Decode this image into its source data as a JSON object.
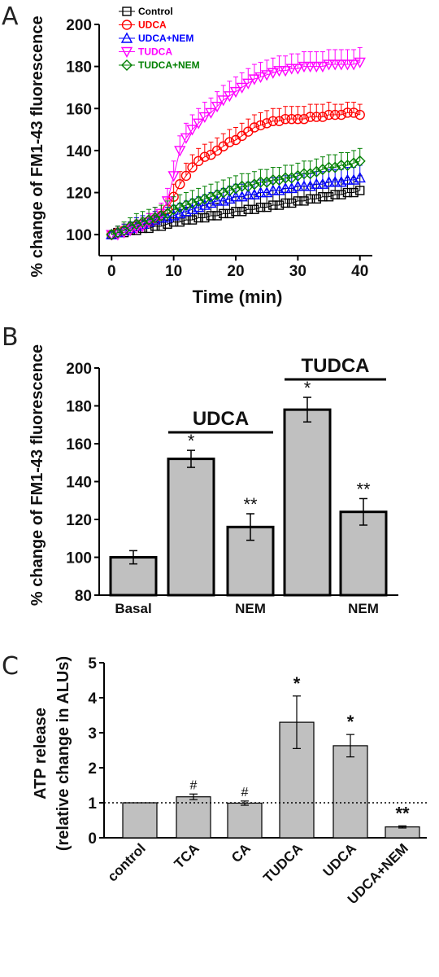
{
  "panels": {
    "a": "A",
    "b": "B",
    "c": "C"
  },
  "chart_data": [
    {
      "type": "line",
      "panel": "A",
      "xlabel": "Time (min)",
      "ylabel": "% change of FM1-43 fluorescence",
      "xlim": [
        -2,
        42
      ],
      "ylim": [
        90,
        200
      ],
      "xticks": [
        0,
        10,
        20,
        30,
        40
      ],
      "yticks": [
        100,
        120,
        140,
        160,
        180,
        200
      ],
      "legend_position": "top",
      "x": [
        0,
        1,
        2,
        3,
        4,
        5,
        6,
        7,
        8,
        9,
        10,
        11,
        12,
        13,
        14,
        15,
        16,
        17,
        18,
        19,
        20,
        21,
        22,
        23,
        24,
        25,
        26,
        27,
        28,
        29,
        30,
        31,
        32,
        33,
        34,
        35,
        36,
        37,
        38,
        39,
        40
      ],
      "series": [
        {
          "name": "Control",
          "color": "#000000",
          "marker": "square",
          "values": [
            100,
            101,
            101,
            102,
            102,
            103,
            103,
            104,
            104,
            105,
            106,
            106,
            107,
            107,
            108,
            108,
            109,
            109,
            110,
            110,
            111,
            111,
            112,
            112,
            113,
            113,
            114,
            114,
            115,
            115,
            116,
            116,
            117,
            117,
            118,
            118,
            119,
            119,
            120,
            120,
            121
          ],
          "err": [
            2,
            3,
            3,
            4,
            4,
            4,
            5,
            5,
            5,
            5,
            6,
            6,
            6,
            6,
            6,
            6,
            6,
            6,
            6,
            7,
            7,
            7,
            7,
            7,
            7,
            7,
            7,
            7,
            7,
            7,
            7,
            7,
            7,
            7,
            7,
            7,
            7,
            7,
            7,
            7,
            7
          ]
        },
        {
          "name": "UDCA",
          "color": "#ff0000",
          "marker": "circle",
          "values": [
            100,
            101,
            102,
            103,
            104,
            105,
            106,
            107,
            109,
            112,
            118,
            124,
            128,
            132,
            135,
            137,
            138,
            140,
            142,
            144,
            145,
            147,
            149,
            151,
            152,
            153,
            154,
            154,
            155,
            155,
            155,
            155,
            156,
            156,
            156,
            157,
            157,
            157,
            158,
            158,
            157
          ],
          "err": [
            2,
            3,
            3,
            3,
            4,
            4,
            4,
            4,
            5,
            5,
            6,
            6,
            6,
            6,
            6,
            6,
            6,
            6,
            6,
            6,
            6,
            6,
            6,
            6,
            6,
            6,
            6,
            6,
            6,
            6,
            6,
            6,
            6,
            6,
            6,
            6,
            5,
            5,
            5,
            5,
            5
          ]
        },
        {
          "name": "UDCA+NEM",
          "color": "#0000ff",
          "marker": "triangle-up",
          "values": [
            100,
            101,
            102,
            103,
            104,
            105,
            106,
            107,
            108,
            108,
            109,
            110,
            111,
            112,
            113,
            114,
            115,
            116,
            116,
            117,
            118,
            118,
            119,
            119,
            120,
            120,
            121,
            121,
            122,
            122,
            123,
            123,
            123,
            124,
            124,
            125,
            125,
            125,
            126,
            126,
            127
          ],
          "err": [
            2,
            3,
            3,
            3,
            4,
            4,
            4,
            4,
            4,
            5,
            5,
            5,
            5,
            5,
            5,
            5,
            5,
            5,
            6,
            6,
            6,
            6,
            6,
            6,
            6,
            6,
            6,
            6,
            6,
            6,
            6,
            6,
            6,
            6,
            6,
            6,
            6,
            6,
            6,
            6,
            6
          ]
        },
        {
          "name": "TUDCA",
          "color": "#ff00ff",
          "marker": "triangle-down",
          "values": [
            100,
            100,
            101,
            102,
            103,
            104,
            106,
            108,
            110,
            116,
            128,
            140,
            146,
            150,
            153,
            156,
            158,
            161,
            164,
            166,
            168,
            170,
            172,
            174,
            175,
            176,
            177,
            178,
            178,
            179,
            179,
            180,
            180,
            180,
            180,
            181,
            181,
            181,
            181,
            181,
            182
          ],
          "err": [
            2,
            3,
            3,
            3,
            4,
            4,
            4,
            5,
            5,
            6,
            7,
            7,
            7,
            7,
            7,
            7,
            7,
            7,
            7,
            7,
            7,
            7,
            7,
            7,
            7,
            7,
            7,
            7,
            7,
            7,
            7,
            7,
            7,
            7,
            7,
            7,
            7,
            7,
            7,
            7,
            7
          ]
        },
        {
          "name": "TUDCA+NEM",
          "color": "#008000",
          "marker": "diamond",
          "values": [
            100,
            101,
            102,
            104,
            105,
            106,
            107,
            108,
            109,
            110,
            112,
            113,
            114,
            115,
            116,
            117,
            118,
            119,
            120,
            121,
            122,
            123,
            123,
            124,
            125,
            125,
            126,
            126,
            127,
            127,
            128,
            129,
            129,
            130,
            131,
            132,
            132,
            133,
            133,
            134,
            135
          ],
          "err": [
            2,
            3,
            4,
            4,
            5,
            5,
            5,
            5,
            5,
            6,
            6,
            6,
            6,
            6,
            6,
            6,
            6,
            6,
            6,
            6,
            6,
            6,
            6,
            6,
            6,
            6,
            6,
            6,
            6,
            6,
            6,
            6,
            6,
            6,
            6,
            6,
            6,
            6,
            6,
            6,
            6
          ]
        }
      ]
    },
    {
      "type": "bar",
      "panel": "B",
      "ylabel": "% change of FM1-43 fluorescence",
      "ylim": [
        80,
        200
      ],
      "yticks": [
        80,
        100,
        120,
        140,
        160,
        180,
        200
      ],
      "categories": [
        "Basal",
        "",
        "NEM",
        "",
        "NEM"
      ],
      "values": [
        100,
        152,
        116,
        178,
        124
      ],
      "errors": [
        3.5,
        4.5,
        7,
        6.5,
        7
      ],
      "significance": [
        "",
        "*",
        "**",
        "*",
        "**"
      ],
      "groups": [
        {
          "label": "UDCA",
          "bars": [
            1,
            2
          ]
        },
        {
          "label": "TUDCA",
          "bars": [
            3,
            4
          ]
        }
      ],
      "bar_color": "#c0c0c0"
    },
    {
      "type": "bar",
      "panel": "C",
      "ylabel_line1": "ATP release",
      "ylabel_line2": "(relative change in ALUs)",
      "ylim": [
        0,
        5
      ],
      "yticks": [
        0,
        1,
        2,
        3,
        4,
        5
      ],
      "categories": [
        "control",
        "TCA",
        "CA",
        "TUDCA",
        "UDCA",
        "UDCA+NEM"
      ],
      "values": [
        1.0,
        1.17,
        0.99,
        3.3,
        2.63,
        0.31
      ],
      "errors": [
        0,
        0.08,
        0.06,
        0.75,
        0.32,
        0.03
      ],
      "significance": [
        "",
        "#",
        "#",
        "*",
        "*",
        "**"
      ],
      "reference_line": 1.0,
      "bar_color": "#c0c0c0"
    }
  ]
}
